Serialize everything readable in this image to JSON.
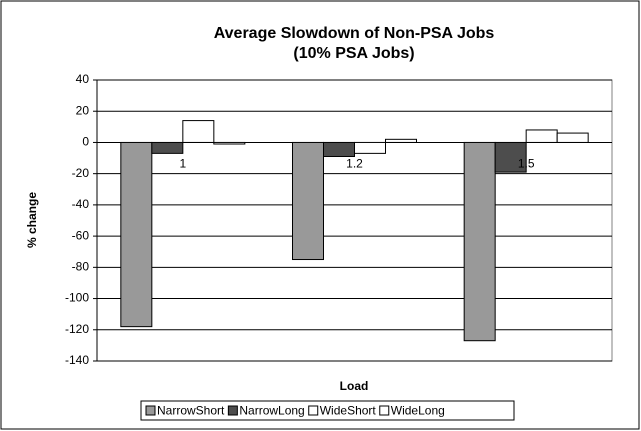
{
  "chart_data": {
    "type": "bar",
    "title": "Average Slowdown of Non-PSA Jobs",
    "subtitle": "(10% PSA Jobs)",
    "x_label": "Load",
    "y_label": "% change",
    "categories": [
      "1",
      "1.2",
      "1.5"
    ],
    "series": [
      {
        "name": "NarrowShort",
        "color": "#999999",
        "values": [
          -118,
          -75,
          -127
        ]
      },
      {
        "name": "NarrowLong",
        "color": "#4d4d4d",
        "values": [
          -7,
          -9,
          -19
        ]
      },
      {
        "name": "WideShort",
        "color": "#ffffff",
        "values": [
          14,
          -7,
          8
        ]
      },
      {
        "name": "WideLong",
        "color": "#ffffff",
        "values": [
          -1,
          2,
          6
        ]
      }
    ],
    "ylim": [
      -140,
      40
    ],
    "yticks": [
      -140,
      -120,
      -100,
      -80,
      -60,
      -40,
      -20,
      0,
      20,
      40
    ],
    "grid": true,
    "legend": "bottom"
  }
}
